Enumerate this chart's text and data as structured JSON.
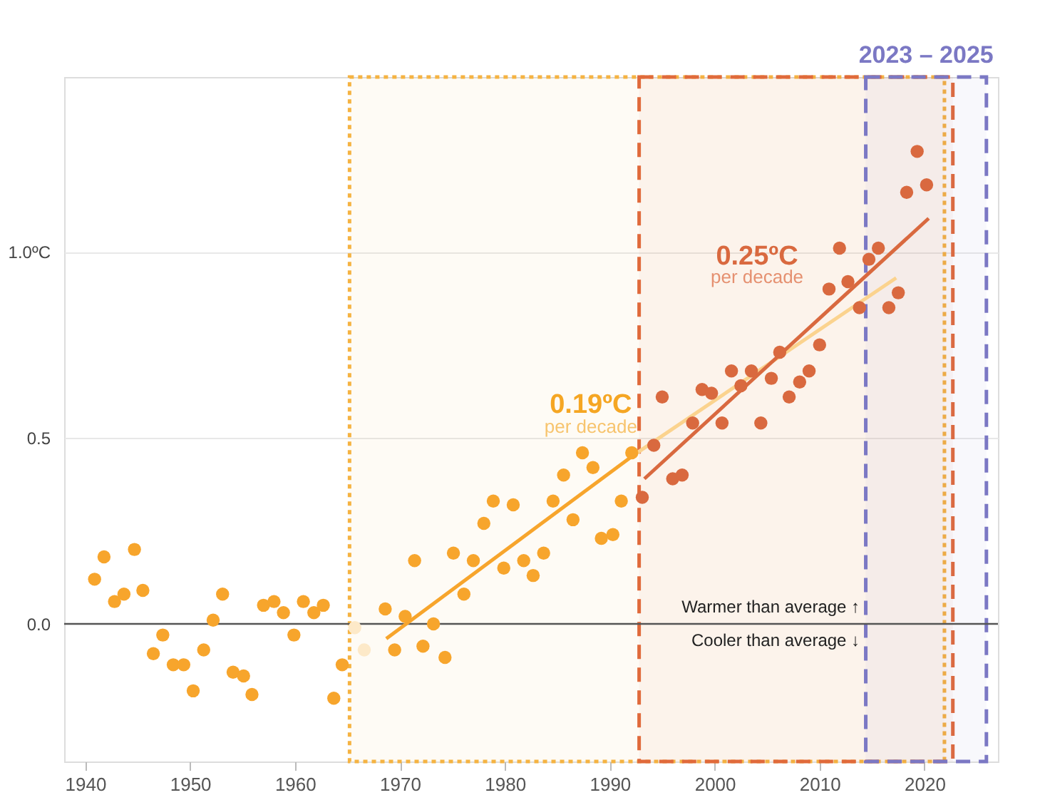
{
  "chart_data": {
    "type": "scatter",
    "xlim": [
      1938,
      2027
    ],
    "xticks": [
      1940,
      1950,
      1960,
      1970,
      1980,
      1990,
      2000,
      2010,
      2020
    ],
    "ylim": [
      -0.37,
      1.47
    ],
    "yticks": [
      {
        "value": 0.0,
        "label": "0.0"
      },
      {
        "value": 0.5,
        "label": "0.5"
      },
      {
        "value": 1.0,
        "label": "1.0ºC"
      }
    ],
    "grid": "y",
    "series": [
      {
        "marker": "circle",
        "color": "#f7a52c",
        "x": [
          1940.9,
          1941.8,
          1942.8,
          1943.7,
          1944.7,
          1945.5,
          1946.5,
          1947.4,
          1948.4,
          1949.4,
          1950.3,
          1951.3,
          1952.2,
          1953.1,
          1954.1,
          1955.1,
          1955.9,
          1957.0,
          1958.0,
          1958.9,
          1959.9,
          1960.8,
          1961.8,
          1962.7,
          1963.7,
          1964.5,
          1968.6,
          1969.5,
          1970.5,
          1971.4,
          1972.2,
          1973.2,
          1974.3,
          1975.1,
          1976.1,
          1977.0,
          1978.0,
          1978.9,
          1979.9,
          1980.8,
          1981.8,
          1982.7,
          1983.7,
          1984.6,
          1985.6,
          1986.5,
          1987.4,
          1988.4,
          1989.2,
          1990.3,
          1991.1,
          1992.1
        ],
        "values": [
          0.12,
          0.18,
          0.06,
          0.08,
          0.2,
          0.09,
          -0.08,
          -0.03,
          -0.11,
          -0.11,
          -0.18,
          -0.07,
          0.01,
          0.08,
          -0.13,
          -0.14,
          -0.19,
          0.05,
          0.06,
          0.03,
          -0.03,
          0.06,
          0.03,
          0.05,
          -0.2,
          -0.11,
          0.04,
          -0.07,
          0.02,
          0.17,
          -0.06,
          0.0,
          -0.09,
          0.19,
          0.08,
          0.17,
          0.27,
          0.33,
          0.15,
          0.32,
          0.17,
          0.13,
          0.19,
          0.33,
          0.4,
          0.28,
          0.46,
          0.42,
          0.23,
          0.24,
          0.33,
          0.46
        ]
      },
      {
        "marker": "circle",
        "color": "#fde9c8",
        "x": [
          1965.7,
          1966.6
        ],
        "values": [
          -0.01,
          -0.07
        ]
      },
      {
        "marker": "circle",
        "color": "#d9693f",
        "x": [
          1993.1,
          1994.2,
          1995.0,
          1996.0,
          1996.9,
          1997.9,
          1998.8,
          1999.7,
          2000.7,
          2001.6,
          2002.5,
          2003.5,
          2004.4,
          2005.4,
          2006.2,
          2007.1,
          2008.1,
          2009.0,
          2010.0,
          2010.9,
          2011.9,
          2012.7,
          2013.8,
          2014.7,
          2015.6,
          2016.6,
          2017.5,
          2018.3,
          2019.3,
          2020.2
        ],
        "values": [
          0.34,
          0.48,
          0.61,
          0.39,
          0.4,
          0.54,
          0.63,
          0.62,
          0.54,
          0.68,
          0.64,
          0.68,
          0.54,
          0.66,
          0.73,
          0.61,
          0.65,
          0.68,
          0.75,
          0.9,
          1.01,
          0.92,
          0.85,
          0.98,
          1.01,
          0.85,
          0.89,
          1.16,
          1.27,
          1.18
        ]
      },
      {
        "type": "line",
        "color": "#f7a52c",
        "x": [
          1968.7,
          1992.1
        ],
        "values": [
          -0.04,
          0.45
        ]
      },
      {
        "type": "line",
        "color": "#fbd38e",
        "x": [
          1992.1,
          2017.3
        ],
        "values": [
          0.45,
          0.93
        ]
      },
      {
        "type": "line",
        "color": "#d9693f",
        "x": [
          1993.3,
          2020.4
        ],
        "values": [
          0.39,
          1.09
        ]
      }
    ],
    "ref_lines": [
      {
        "axis": "y",
        "value": 0,
        "label": null,
        "color": "#555555"
      }
    ],
    "bands": [
      {
        "axis": "x",
        "from": 1965.2,
        "to": 2021.9,
        "label": null,
        "color": "#f5b342"
      },
      {
        "axis": "x",
        "from": 1992.8,
        "to": 2022.7,
        "label": null,
        "color": "#e06a3b"
      },
      {
        "axis": "x",
        "from": 2014.4,
        "to": 2025.9,
        "label": "2023 – 2025",
        "color": "#7b78c4"
      }
    ],
    "annotations": [
      "0.19ºC",
      "per decade",
      "0.25ºC",
      "per decade",
      "Warmer than average ↑",
      "Cooler than average ↓"
    ]
  }
}
